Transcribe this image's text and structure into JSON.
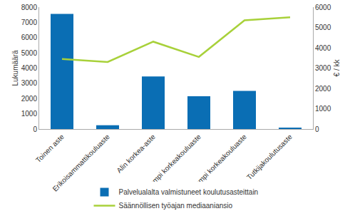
{
  "chart_data": {
    "type": "bar",
    "categories": [
      "Toinen aste",
      "Erikoisammattikouluaste",
      "Alin korkea-aste",
      "Alempi korkeakouluaste",
      "Ylempi korkeakouluaste",
      "Tutkijakoulutusaste"
    ],
    "series": [
      {
        "name": "Palvelualalta valmistuneet koulutusasteittain",
        "type": "bar",
        "color": "#0a6eb4",
        "values": [
          7550,
          250,
          3450,
          2150,
          2500,
          80
        ]
      },
      {
        "name": "Säännöllisen työajan mediaaniansio",
        "type": "line",
        "color": "#a8d13a",
        "axis": "y2",
        "values": [
          3450,
          3300,
          4300,
          3550,
          5350,
          5500
        ]
      }
    ],
    "y_label": "Lukumäärä",
    "y2_label": "€ / kk",
    "ylim": [
      0,
      8000
    ],
    "yticks": [
      0,
      1000,
      2000,
      3000,
      4000,
      5000,
      6000,
      7000,
      8000
    ],
    "y2lim": [
      0,
      6000
    ],
    "y2ticks": [
      0,
      1000,
      2000,
      3000,
      4000,
      5000,
      6000
    ],
    "grid": false,
    "legend": "bottom"
  }
}
